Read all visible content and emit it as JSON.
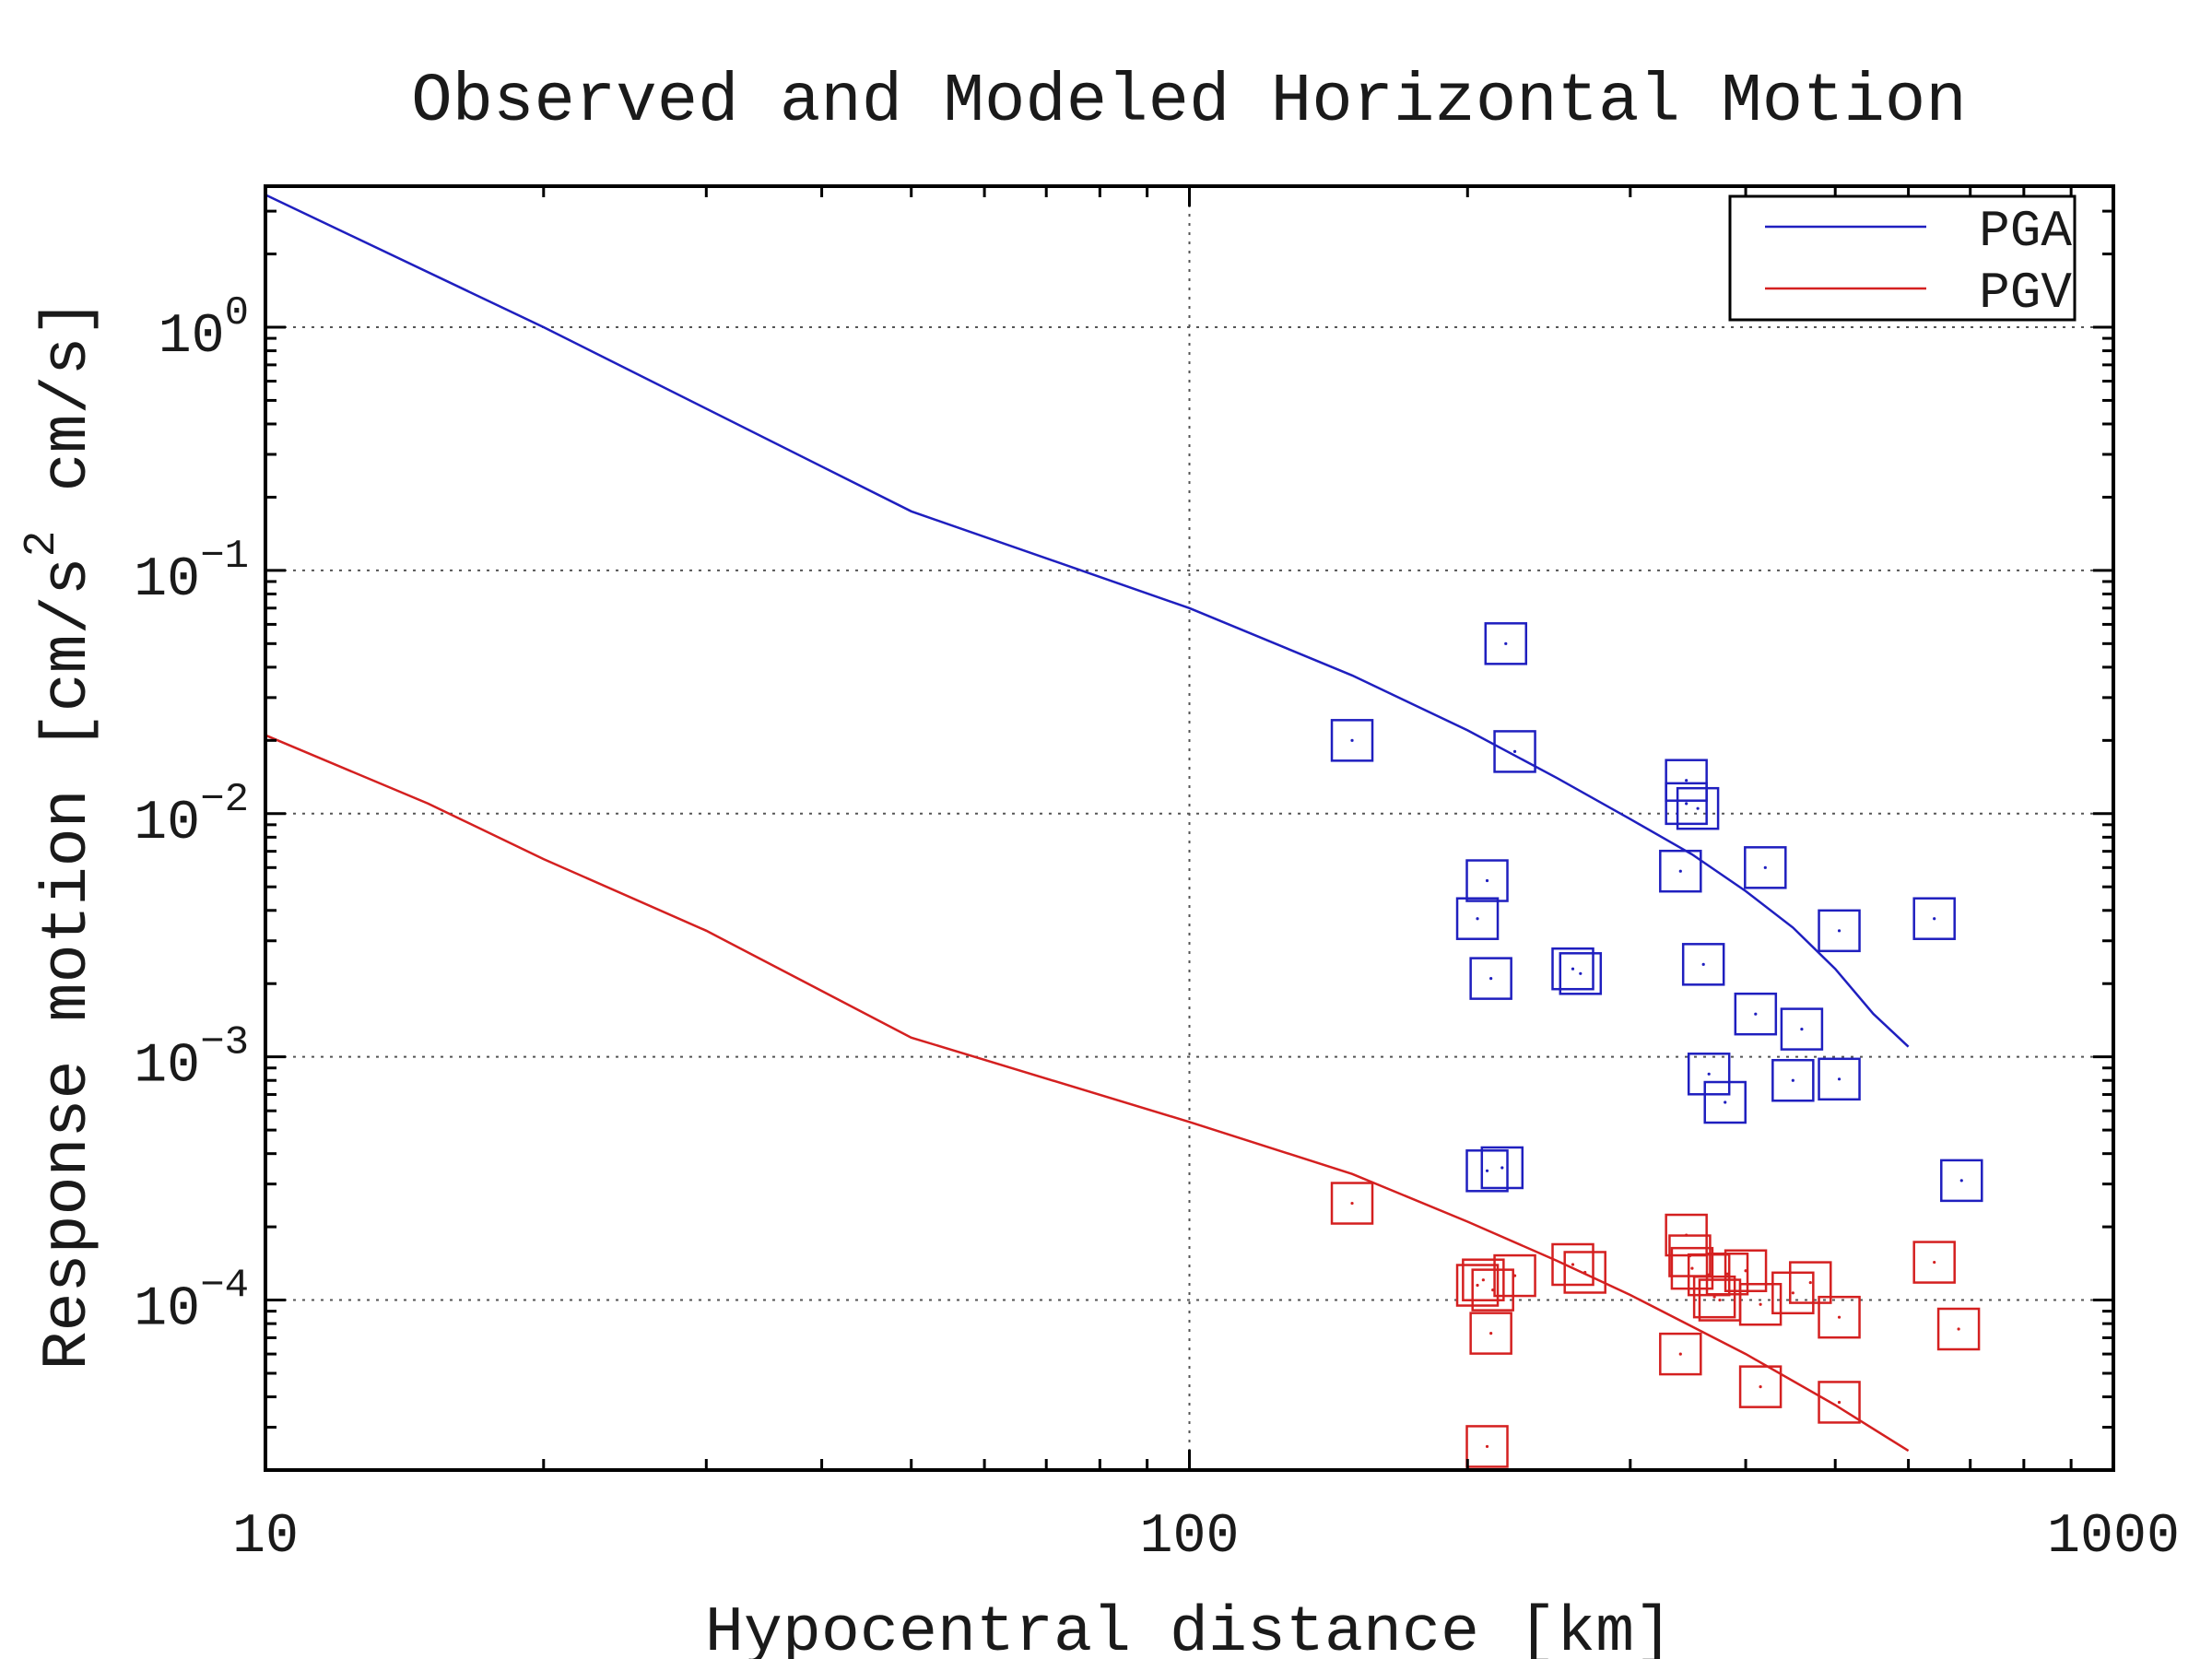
{
  "chart_data": {
    "type": "scatter",
    "title": "Observed and Modeled Horizontal Motion",
    "xlabel": "Hypocentral distance [km]",
    "ylabel": "Response motion [cm/s² cm/s]",
    "ylabel_parts": {
      "pre": "Response motion [cm/s",
      "sup": "2",
      "post": " cm/s]"
    },
    "x_scale": "log",
    "y_scale": "log",
    "xlim": [
      10,
      1000
    ],
    "ylim": [
      2e-05,
      3.8
    ],
    "x_ticks": [
      {
        "value": 10,
        "label": "10"
      },
      {
        "value": 100,
        "label": "100"
      },
      {
        "value": 1000,
        "label": "1000"
      }
    ],
    "y_ticks": [
      {
        "value": 1,
        "base": "10",
        "exp": "0"
      },
      {
        "value": 0.1,
        "base": "10",
        "exp": "−1"
      },
      {
        "value": 0.01,
        "base": "10",
        "exp": "−2"
      },
      {
        "value": 0.001,
        "base": "10",
        "exp": "−3"
      },
      {
        "value": 0.0001,
        "base": "10",
        "exp": "−4"
      }
    ],
    "grid": true,
    "legend_position": "top-right",
    "series": [
      {
        "name": "PGA",
        "color": "#1f1fbf",
        "model_line": [
          [
            10,
            3.5
          ],
          [
            20,
            1.0
          ],
          [
            50,
            0.175
          ],
          [
            100,
            0.07
          ],
          [
            150,
            0.037
          ],
          [
            200,
            0.022
          ],
          [
            250,
            0.014
          ],
          [
            300,
            0.0095
          ],
          [
            350,
            0.0068
          ],
          [
            400,
            0.0048
          ],
          [
            450,
            0.0034
          ],
          [
            500,
            0.0023
          ],
          [
            550,
            0.0015
          ],
          [
            600,
            0.0011
          ]
        ],
        "observed": [
          [
            150,
            0.02
          ],
          [
            220,
            0.05
          ],
          [
            225,
            0.018
          ],
          [
            210,
            0.0053
          ],
          [
            205,
            0.0037
          ],
          [
            212,
            0.0021
          ],
          [
            260,
            0.0023
          ],
          [
            265,
            0.0022
          ],
          [
            345,
            0.0137
          ],
          [
            345,
            0.011
          ],
          [
            355,
            0.0105
          ],
          [
            340,
            0.0058
          ],
          [
            420,
            0.006
          ],
          [
            360,
            0.0024
          ],
          [
            410,
            0.0015
          ],
          [
            460,
            0.0013
          ],
          [
            505,
            0.0033
          ],
          [
            640,
            0.0037
          ],
          [
            365,
            0.00085
          ],
          [
            380,
            0.00065
          ],
          [
            450,
            0.0008
          ],
          [
            505,
            0.00081
          ],
          [
            210,
            0.00034
          ],
          [
            218,
            0.00035
          ],
          [
            685,
            0.00031
          ]
        ]
      },
      {
        "name": "PGV",
        "color": "#d42020",
        "model_line": [
          [
            10,
            0.021
          ],
          [
            15,
            0.011
          ],
          [
            20,
            0.0065
          ],
          [
            30,
            0.0033
          ],
          [
            50,
            0.0012
          ],
          [
            100,
            0.00054
          ],
          [
            150,
            0.00033
          ],
          [
            200,
            0.00021
          ],
          [
            250,
            0.000145
          ],
          [
            300,
            0.000105
          ],
          [
            400,
            6e-05
          ],
          [
            500,
            3.7e-05
          ],
          [
            600,
            2.4e-05
          ]
        ],
        "observed": [
          [
            150,
            0.00025
          ],
          [
            205,
            0.000115
          ],
          [
            208,
            0.000121
          ],
          [
            213,
            0.00011
          ],
          [
            212,
            7.3e-05
          ],
          [
            225,
            0.000126
          ],
          [
            260,
            0.00014
          ],
          [
            268,
            0.00013
          ],
          [
            340,
            6e-05
          ],
          [
            345,
            0.000185
          ],
          [
            348,
            0.000152
          ],
          [
            350,
            0.000135
          ],
          [
            365,
            0.000127
          ],
          [
            370,
            0.000103
          ],
          [
            375,
            0.0001
          ],
          [
            382,
            0.000128
          ],
          [
            400,
            0.000132
          ],
          [
            415,
            9.6e-05
          ],
          [
            450,
            0.000107
          ],
          [
            470,
            0.000118
          ],
          [
            505,
            8.5e-05
          ],
          [
            415,
            4.4e-05
          ],
          [
            505,
            3.8e-05
          ],
          [
            640,
            0.000143
          ],
          [
            680,
            7.6e-05
          ],
          [
            210,
            2.5e-05
          ]
        ]
      }
    ]
  }
}
